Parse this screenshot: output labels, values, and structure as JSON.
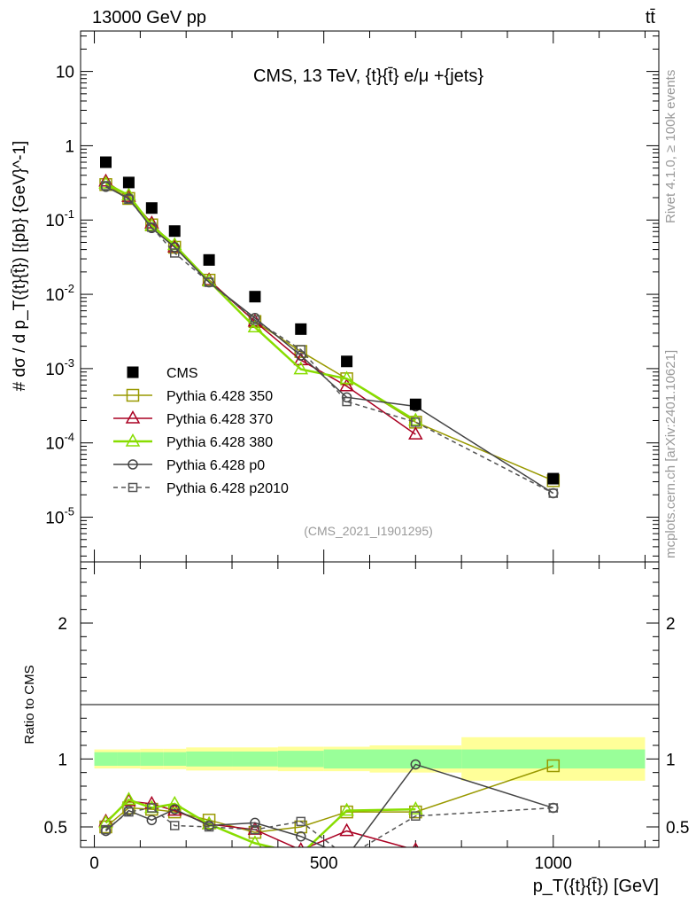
{
  "header": {
    "left": "13000 GeV pp",
    "right": "tt̄",
    "side_rivet": "Rivet 4.1.0, ≥ 100k events",
    "side_mcplots": "mcplots.cern.ch [arXiv:2401.10621]"
  },
  "chart_data": [
    {
      "type": "line",
      "panel": "main",
      "title": "CMS, 13 TeV, {t}{t̄} e/μ +{jets}",
      "watermark": "(CMS_2021_I1901295)",
      "ylabel": "# dσ / d p_T({t}{t̄}) [{pb} {GeV}^-1]",
      "yscale": "log",
      "xlim": [
        -30,
        1230
      ],
      "ylim": [
        2.5e-06,
        35
      ],
      "ytick_labels": [
        "10^-5",
        "10^-4",
        "10^-3",
        "10^-2",
        "10^-1",
        "1",
        "10"
      ],
      "x": [
        25,
        75,
        125,
        175,
        250,
        350,
        450,
        550,
        700,
        1000
      ],
      "series": [
        {
          "name": "CMS",
          "color": "#000000",
          "marker": "filled-square",
          "values": [
            0.6,
            0.32,
            0.145,
            0.071,
            0.029,
            0.0093,
            0.0034,
            0.00125,
            0.00033,
            3.3e-05
          ]
        },
        {
          "name": "Pythia 6.428 350",
          "color": "#999900",
          "marker": "open-square",
          "values": [
            0.3,
            0.195,
            0.086,
            0.043,
            0.0155,
            0.0043,
            0.0017,
            0.00073,
            0.00019,
            3.1e-05
          ]
        },
        {
          "name": "Pythia 6.428 370",
          "color": "#aa0022",
          "marker": "open-triangle",
          "values": [
            0.33,
            0.205,
            0.09,
            0.043,
            0.0155,
            0.0043,
            0.0013,
            0.00058,
            0.00013,
            null
          ]
        },
        {
          "name": "Pythia 6.428 380",
          "color": "#88dd00",
          "marker": "open-triangle",
          "values": [
            0.31,
            0.215,
            0.084,
            0.046,
            0.015,
            0.0036,
            0.00098,
            0.00073,
            0.0002,
            null
          ]
        },
        {
          "name": "Pythia 6.428 p0",
          "color": "#444444",
          "marker": "open-circle",
          "values": [
            0.28,
            0.195,
            0.078,
            0.043,
            0.0145,
            0.0048,
            0.0015,
            0.00041,
            0.00031,
            2.1e-05
          ]
        },
        {
          "name": "Pythia 6.428 p2010",
          "color": "#555555",
          "marker": "open-square-dashed",
          "values": [
            0.29,
            0.19,
            0.08,
            0.036,
            0.0145,
            0.0045,
            0.0018,
            0.00036,
            0.00019,
            2.1e-05
          ]
        }
      ]
    },
    {
      "type": "line",
      "panel": "ratio",
      "ylabel": "Ratio to CMS",
      "xlabel": "p_T({t}{t̄}) [GeV]",
      "xlim": [
        -30,
        1230
      ],
      "ylim": [
        0.35,
        2.45
      ],
      "xticks": [
        0,
        500,
        1000
      ],
      "ytick_labels": [
        "0.5",
        "1",
        "2"
      ],
      "bins": [
        [
          0,
          50
        ],
        [
          50,
          100
        ],
        [
          100,
          150
        ],
        [
          150,
          200
        ],
        [
          200,
          300
        ],
        [
          300,
          400
        ],
        [
          400,
          500
        ],
        [
          500,
          600
        ],
        [
          600,
          800
        ],
        [
          800,
          1200
        ]
      ],
      "band_green": [
        0.05,
        0.05,
        0.05,
        0.05,
        0.055,
        0.055,
        0.06,
        0.07,
        0.07,
        0.07
      ],
      "band_yellow": [
        0.07,
        0.07,
        0.075,
        0.075,
        0.085,
        0.085,
        0.09,
        0.09,
        0.1,
        0.16
      ],
      "x": [
        25,
        75,
        125,
        175,
        250,
        350,
        450,
        550,
        700,
        1000
      ],
      "series": [
        {
          "name": "Pythia 6.428 350",
          "values": [
            0.5,
            0.64,
            0.63,
            0.61,
            0.55,
            0.46,
            0.5,
            0.61,
            0.61,
            0.95
          ]
        },
        {
          "name": "Pythia 6.428 370",
          "values": [
            0.54,
            0.69,
            0.67,
            0.62,
            0.52,
            0.48,
            0.33,
            0.47,
            0.33,
            null
          ]
        },
        {
          "name": "Pythia 6.428 380",
          "values": [
            0.53,
            0.7,
            0.64,
            0.67,
            0.52,
            0.38,
            0.3,
            0.62,
            0.63,
            null
          ]
        },
        {
          "name": "Pythia 6.428 p0",
          "values": [
            0.47,
            0.62,
            0.55,
            0.63,
            0.51,
            0.53,
            0.43,
            0.28,
            0.96,
            0.64
          ]
        },
        {
          "name": "Pythia 6.428 p2010",
          "values": [
            0.48,
            0.61,
            0.64,
            0.51,
            0.5,
            0.48,
            0.54,
            0.28,
            0.58,
            0.64
          ]
        }
      ]
    }
  ]
}
